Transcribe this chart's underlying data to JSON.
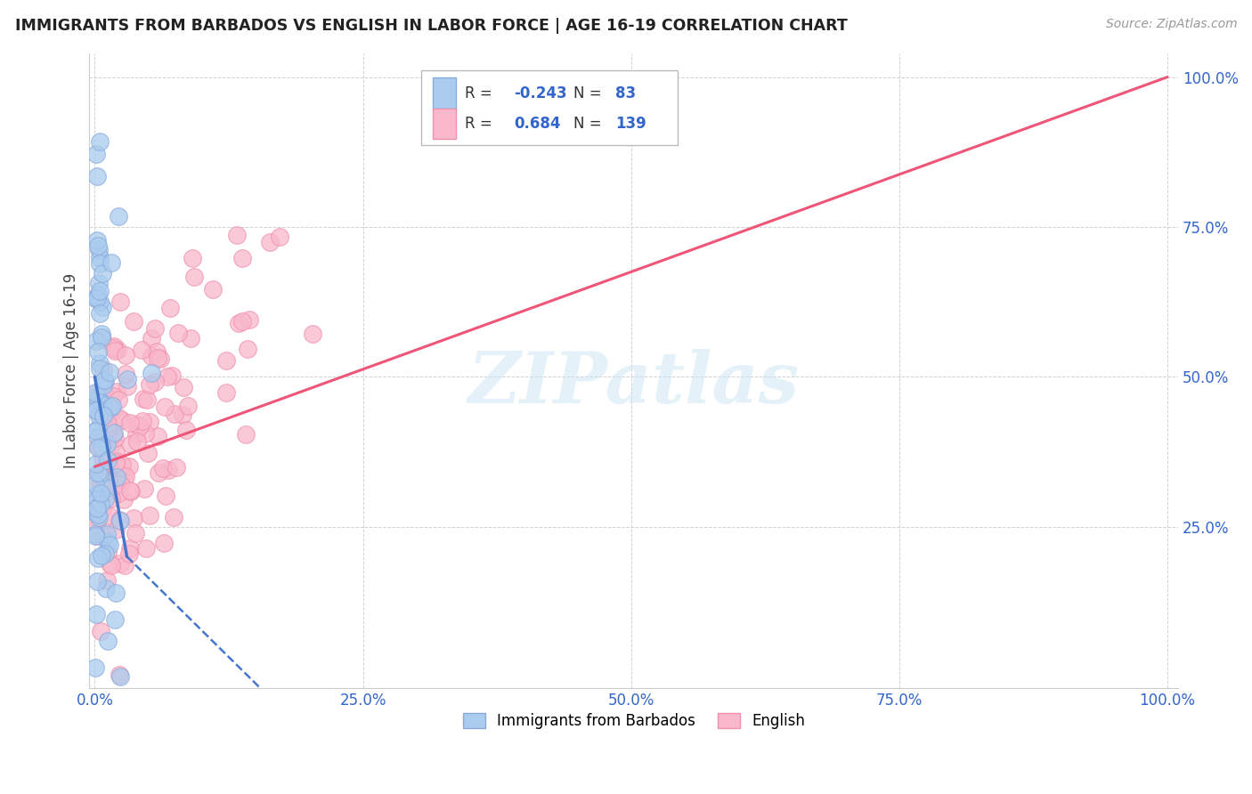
{
  "title": "IMMIGRANTS FROM BARBADOS VS ENGLISH IN LABOR FORCE | AGE 16-19 CORRELATION CHART",
  "source": "Source: ZipAtlas.com",
  "ylabel": "In Labor Force | Age 16-19",
  "R_blue": "-0.243",
  "N_blue": "83",
  "R_pink": "0.684",
  "N_pink": "139",
  "watermark": "ZIPatlas",
  "bg_color": "#ffffff",
  "grid_color": "#cccccc",
  "title_color": "#222222",
  "blue_color": "#aaccee",
  "pink_color": "#f9b8cc",
  "blue_edge": "#88aadd",
  "pink_edge": "#f090aa",
  "blue_line_color": "#4477cc",
  "pink_line_color": "#ee5577",
  "xlim": [
    0,
    100
  ],
  "ylim": [
    0,
    100
  ],
  "xticks": [
    0,
    25,
    50,
    75,
    100
  ],
  "yticks": [
    25,
    50,
    75,
    100
  ],
  "xticklabels": [
    "0.0%",
    "25.0%",
    "50.0%",
    "75.0%",
    "100.0%"
  ],
  "yticklabels": [
    "25.0%",
    "50.0%",
    "75.0%",
    "100.0%"
  ],
  "legend_label_blue": "Immigrants from Barbados",
  "legend_label_pink": "English",
  "blue_seed": 77,
  "pink_seed": 33
}
